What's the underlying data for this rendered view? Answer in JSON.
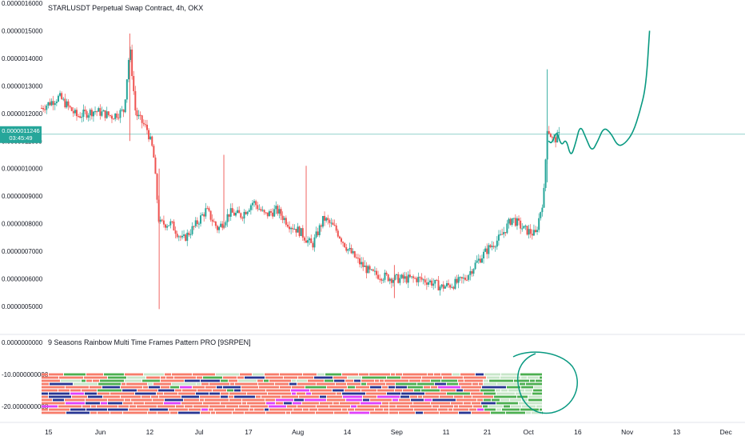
{
  "chart_data": [
    {
      "type": "candlestick",
      "title": "STARLUSDT Perpetual Swap Contract, 4h, OKX",
      "y_ticks": [
        "0.0000016000",
        "0.0000015000",
        "0.0000014000",
        "0.0000013000",
        "0.0000012000",
        "0.0000011000",
        "0.0000010000",
        "0.0000009000",
        "0.0000008000",
        "0.0000007000",
        "0.0000006000",
        "0.0000005000"
      ],
      "ylim": [
        4.8e-07,
        1.6e-06
      ],
      "current_price": {
        "label": "0.0000011246",
        "countdown": "03:45:49",
        "value": 1.1246e-06
      },
      "path_points": [
        [
          0.0,
          1.22e-06
        ],
        [
          1.5,
          1.26e-06
        ],
        [
          3.0,
          1.19e-06
        ],
        [
          4.5,
          1.21e-06
        ],
        [
          6.0,
          1.19e-06
        ],
        [
          7.0,
          1.21e-06
        ],
        [
          7.5,
          1.44e-06
        ],
        [
          8.0,
          1.2e-06
        ],
        [
          9.0,
          1.14e-06
        ],
        [
          9.5,
          1.06e-06
        ],
        [
          10.0,
          8e-07
        ],
        [
          11.0,
          8e-07
        ],
        [
          12.0,
          7.4e-07
        ],
        [
          13.0,
          7.9e-07
        ],
        [
          14.0,
          8.5e-07
        ],
        [
          15.0,
          7.8e-07
        ],
        [
          16.0,
          8.4e-07
        ],
        [
          17.0,
          8.3e-07
        ],
        [
          18.0,
          8.8e-07
        ],
        [
          19.0,
          8.3e-07
        ],
        [
          20.0,
          8.5e-07
        ],
        [
          21.0,
          8e-07
        ],
        [
          22.0,
          7.7e-07
        ],
        [
          23.0,
          7.2e-07
        ],
        [
          24.0,
          8.2e-07
        ],
        [
          25.0,
          7.8e-07
        ],
        [
          26.0,
          7.1e-07
        ],
        [
          27.0,
          6.6e-07
        ],
        [
          28.0,
          6.2e-07
        ],
        [
          29.0,
          6.1e-07
        ],
        [
          30.0,
          6e-07
        ],
        [
          31.0,
          6e-07
        ],
        [
          32.0,
          6e-07
        ],
        [
          33.0,
          5.9e-07
        ],
        [
          34.0,
          5.7e-07
        ],
        [
          35.0,
          5.8e-07
        ],
        [
          36.0,
          6e-07
        ],
        [
          37.0,
          6.6e-07
        ],
        [
          38.0,
          7.1e-07
        ],
        [
          39.0,
          7.5e-07
        ],
        [
          40.0,
          8.2e-07
        ],
        [
          41.0,
          7.8e-07
        ],
        [
          42.0,
          7.6e-07
        ],
        [
          42.7,
          9e-07
        ],
        [
          43.0,
          1.15e-06
        ],
        [
          43.5,
          1.1e-06
        ],
        [
          44.0,
          1.12e-06
        ]
      ],
      "spikes": [
        {
          "x": 7.5,
          "high": 1.49e-06,
          "low": 1.1e-06
        },
        {
          "x": 10.0,
          "high": 1e-06,
          "low": 4.9e-07
        },
        {
          "x": 15.5,
          "high": 1.05e-06,
          "low": 7.8e-07
        },
        {
          "x": 22.5,
          "high": 1.01e-06,
          "low": 7.5e-07
        },
        {
          "x": 30.0,
          "high": 6.5e-07,
          "low": 5.3e-07
        },
        {
          "x": 43.0,
          "high": 1.36e-06,
          "low": 9.5e-07
        }
      ],
      "projection": [
        [
          43.1,
          1.1e-06
        ],
        [
          43.4,
          1.09e-06
        ],
        [
          43.8,
          1.14e-06
        ],
        [
          44.2,
          1.08e-06
        ],
        [
          44.6,
          1.11e-06
        ],
        [
          45.0,
          1.04e-06
        ],
        [
          45.4,
          1.09e-06
        ],
        [
          45.8,
          1.16e-06
        ],
        [
          46.3,
          1.11e-06
        ],
        [
          46.8,
          1.06e-06
        ],
        [
          47.3,
          1.1e-06
        ],
        [
          47.8,
          1.15e-06
        ],
        [
          48.4,
          1.13e-06
        ],
        [
          49.0,
          1.08e-06
        ],
        [
          49.6,
          1.09e-06
        ],
        [
          50.3,
          1.13e-06
        ],
        [
          50.9,
          1.21e-06
        ],
        [
          51.4,
          1.3e-06
        ],
        [
          51.7,
          1.5e-06
        ]
      ],
      "colors": {
        "up": "#26a69a",
        "down": "#ef5350",
        "drawing": "#089981",
        "price_line": "#26a69a"
      }
    },
    {
      "type": "bar",
      "title": "9 Seasons Rainbow Multi Time Frames Pattern PRO [9SRPEN]",
      "y_ticks": [
        "0.0000000000",
        "-10.0000000000",
        "-20.0000000000"
      ],
      "ylim": [
        -23,
        0
      ],
      "rows": [
        {
          "y": -10,
          "pattern": "mixed"
        },
        {
          "y": -11,
          "pattern": "mixed"
        },
        {
          "y": -12,
          "pattern": "mixed"
        },
        {
          "y": -13,
          "pattern": "mixed"
        },
        {
          "y": -14,
          "pattern": "mixed"
        },
        {
          "y": -15,
          "pattern": "mixed"
        },
        {
          "y": -16,
          "pattern": "mixed"
        },
        {
          "y": -17,
          "pattern": "mixed"
        },
        {
          "y": -18,
          "pattern": "mixed"
        },
        {
          "y": -19,
          "pattern": "mixed"
        },
        {
          "y": -20,
          "pattern": "mixed"
        },
        {
          "y": -21,
          "pattern": "mixed"
        },
        {
          "y": -22,
          "pattern": "mixed"
        }
      ],
      "colors": {
        "salmon": "#f77c6a",
        "navy": "#283593",
        "magenta": "#e040fb",
        "green": "#4caf50",
        "light_green": "#c8e6c9"
      }
    }
  ],
  "x_axis": {
    "labels": [
      {
        "text": "15",
        "x": 0.6
      },
      {
        "text": "Jun",
        "x": 5.0
      },
      {
        "text": "12",
        "x": 9.2
      },
      {
        "text": "Jul",
        "x": 13.4
      },
      {
        "text": "17",
        "x": 17.6
      },
      {
        "text": "Aug",
        "x": 21.8
      },
      {
        "text": "14",
        "x": 26.0
      },
      {
        "text": "Sep",
        "x": 30.2
      },
      {
        "text": "11",
        "x": 34.4
      },
      {
        "text": "21",
        "x": 37.9
      },
      {
        "text": "Oct",
        "x": 41.4
      },
      {
        "text": "16",
        "x": 45.6
      },
      {
        "text": "Nov",
        "x": 49.8
      },
      {
        "text": "13",
        "x": 54.0
      },
      {
        "text": "Dec",
        "x": 58.2
      }
    ],
    "xlim": [
      0,
      59
    ]
  }
}
